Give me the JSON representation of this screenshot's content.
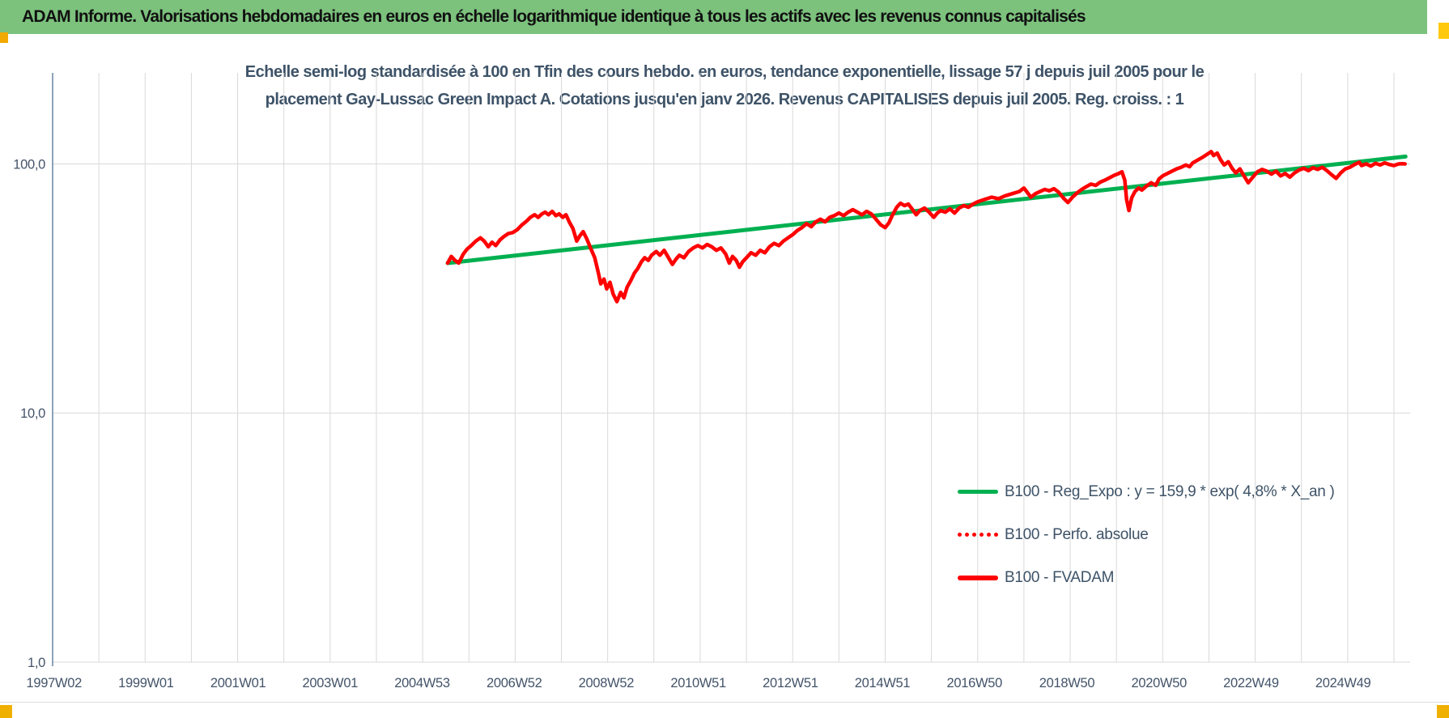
{
  "header": {
    "title": "ADAM Informe. Valorisations hebdomadaires en euros en échelle logarithmique identique à tous les actifs avec les revenus connus capitalisés"
  },
  "colors": {
    "header_bg": "#7CC27D",
    "header_text": "#111111",
    "title_text": "#3E5368",
    "tick_text": "#44546A",
    "grid": "#D9D9D9",
    "axis_line": "#6E8CA8",
    "trend_green": "#00B050",
    "series_red": "#FF0000",
    "marker_orange": "#F2A900",
    "marker_yellow": "#FFC90E",
    "marker_amber": "#EFB000"
  },
  "chart_data": {
    "type": "line",
    "title_line1": "Echelle semi-log standardisée à 100 en Tfin des cours hebdo. en euros, tendance exponentielle, lissage 57 j depuis juil 2005 pour le",
    "title_line2": "placement Gay-Lussac Green Impact A. Cotations jusqu'en janv 2026. Revenus CAPITALISES depuis juil 2005. Reg. croiss. : 1",
    "y_scale": "log10",
    "x_domain": [
      1997.0,
      2026.35
    ],
    "y_domain": [
      1.0,
      232.0
    ],
    "grid_x_step_years": 1,
    "legend_position": "inside-right",
    "y_ticks": [
      {
        "label": "100,0",
        "v": 100
      },
      {
        "label": "10,0",
        "v": 10
      },
      {
        "label": "1,0",
        "v": 1
      }
    ],
    "x_ticks": [
      {
        "label": "1997W02",
        "t": 1997.03
      },
      {
        "label": "1999W01",
        "t": 1999.02
      },
      {
        "label": "2001W01",
        "t": 2001.01
      },
      {
        "label": "2003W01",
        "t": 2003.0
      },
      {
        "label": "2004W53",
        "t": 2004.99
      },
      {
        "label": "2006W52",
        "t": 2006.98
      },
      {
        "label": "2008W52",
        "t": 2008.97
      },
      {
        "label": "2010W51",
        "t": 2010.96
      },
      {
        "label": "2012W51",
        "t": 2012.95
      },
      {
        "label": "2014W51",
        "t": 2014.94
      },
      {
        "label": "2016W50",
        "t": 2016.93
      },
      {
        "label": "2018W50",
        "t": 2018.93
      },
      {
        "label": "2020W50",
        "t": 2020.92
      },
      {
        "label": "2022W49",
        "t": 2022.91
      },
      {
        "label": "2024W49",
        "t": 2024.9
      }
    ],
    "series": [
      {
        "name": "B100 - Reg_Expo : y = 159,9 * exp( 4,8% *  X_an )",
        "color": "#00B050",
        "style": "solid",
        "width": 5,
        "points": [
          [
            2005.54,
            40.0
          ],
          [
            2026.25,
            107.0
          ]
        ]
      },
      {
        "name": "B100 - Perfo. absolue",
        "color": "#FF0000",
        "style": "dotted",
        "width": 4,
        "coincident_with": "B100 - FVADAM",
        "points": []
      },
      {
        "name": "B100 - FVADAM",
        "color": "#FF0000",
        "style": "solid",
        "width": 4.5,
        "points": [
          [
            2005.54,
            40
          ],
          [
            2005.62,
            42.5
          ],
          [
            2005.7,
            41
          ],
          [
            2005.78,
            40
          ],
          [
            2005.88,
            43.5
          ],
          [
            2005.96,
            45.5
          ],
          [
            2006.05,
            47
          ],
          [
            2006.15,
            49
          ],
          [
            2006.25,
            50.5
          ],
          [
            2006.33,
            49
          ],
          [
            2006.42,
            46.5
          ],
          [
            2006.5,
            48.5
          ],
          [
            2006.58,
            47
          ],
          [
            2006.67,
            49.5
          ],
          [
            2006.75,
            51
          ],
          [
            2006.85,
            52.5
          ],
          [
            2006.95,
            53
          ],
          [
            2007.05,
            54.5
          ],
          [
            2007.15,
            57
          ],
          [
            2007.25,
            59
          ],
          [
            2007.33,
            61
          ],
          [
            2007.42,
            62.5
          ],
          [
            2007.5,
            61
          ],
          [
            2007.58,
            63
          ],
          [
            2007.65,
            64
          ],
          [
            2007.72,
            62.5
          ],
          [
            2007.8,
            64.5
          ],
          [
            2007.88,
            62
          ],
          [
            2007.95,
            63
          ],
          [
            2008.03,
            61
          ],
          [
            2008.1,
            62.5
          ],
          [
            2008.17,
            58.5
          ],
          [
            2008.25,
            55
          ],
          [
            2008.33,
            49
          ],
          [
            2008.4,
            51.5
          ],
          [
            2008.47,
            53.5
          ],
          [
            2008.55,
            50
          ],
          [
            2008.63,
            46
          ],
          [
            2008.72,
            42
          ],
          [
            2008.8,
            36.5
          ],
          [
            2008.85,
            33
          ],
          [
            2008.92,
            34.5
          ],
          [
            2008.98,
            31.5
          ],
          [
            2009.05,
            33.5
          ],
          [
            2009.12,
            30
          ],
          [
            2009.2,
            28
          ],
          [
            2009.28,
            30.5
          ],
          [
            2009.35,
            29
          ],
          [
            2009.42,
            32
          ],
          [
            2009.5,
            34
          ],
          [
            2009.58,
            36.5
          ],
          [
            2009.65,
            38
          ],
          [
            2009.73,
            40.5
          ],
          [
            2009.8,
            42
          ],
          [
            2009.88,
            41
          ],
          [
            2009.95,
            43
          ],
          [
            2010.05,
            44.5
          ],
          [
            2010.13,
            43
          ],
          [
            2010.22,
            45
          ],
          [
            2010.3,
            42.5
          ],
          [
            2010.4,
            39.5
          ],
          [
            2010.48,
            41.5
          ],
          [
            2010.55,
            43
          ],
          [
            2010.65,
            42
          ],
          [
            2010.75,
            44.5
          ],
          [
            2010.85,
            46
          ],
          [
            2010.95,
            47
          ],
          [
            2011.05,
            46
          ],
          [
            2011.15,
            47.5
          ],
          [
            2011.25,
            46.5
          ],
          [
            2011.35,
            45
          ],
          [
            2011.45,
            46
          ],
          [
            2011.55,
            43.5
          ],
          [
            2011.63,
            40
          ],
          [
            2011.7,
            42.5
          ],
          [
            2011.78,
            41
          ],
          [
            2011.85,
            38.5
          ],
          [
            2011.92,
            40.5
          ],
          [
            2012,
            42
          ],
          [
            2012.1,
            44
          ],
          [
            2012.2,
            43
          ],
          [
            2012.3,
            45
          ],
          [
            2012.4,
            44
          ],
          [
            2012.5,
            46.5
          ],
          [
            2012.6,
            48
          ],
          [
            2012.7,
            47
          ],
          [
            2012.8,
            49
          ],
          [
            2012.9,
            50.5
          ],
          [
            2013,
            52
          ],
          [
            2013.1,
            54
          ],
          [
            2013.2,
            55.5
          ],
          [
            2013.3,
            57.5
          ],
          [
            2013.4,
            56
          ],
          [
            2013.5,
            58.5
          ],
          [
            2013.6,
            60
          ],
          [
            2013.7,
            58.5
          ],
          [
            2013.8,
            61
          ],
          [
            2013.9,
            62
          ],
          [
            2014,
            63.5
          ],
          [
            2014.1,
            62
          ],
          [
            2014.2,
            64
          ],
          [
            2014.3,
            65.5
          ],
          [
            2014.4,
            64
          ],
          [
            2014.5,
            62.5
          ],
          [
            2014.6,
            64.5
          ],
          [
            2014.7,
            63
          ],
          [
            2014.8,
            60
          ],
          [
            2014.9,
            57
          ],
          [
            2015,
            55.5
          ],
          [
            2015.08,
            58
          ],
          [
            2015.15,
            62
          ],
          [
            2015.25,
            67
          ],
          [
            2015.33,
            69.5
          ],
          [
            2015.42,
            68
          ],
          [
            2015.5,
            69
          ],
          [
            2015.58,
            66
          ],
          [
            2015.67,
            62.5
          ],
          [
            2015.75,
            65
          ],
          [
            2015.85,
            66.5
          ],
          [
            2015.95,
            64
          ],
          [
            2016.05,
            61
          ],
          [
            2016.13,
            63.5
          ],
          [
            2016.2,
            65
          ],
          [
            2016.3,
            64
          ],
          [
            2016.4,
            66
          ],
          [
            2016.5,
            63.5
          ],
          [
            2016.6,
            66.5
          ],
          [
            2016.7,
            68
          ],
          [
            2016.8,
            67
          ],
          [
            2016.9,
            69
          ],
          [
            2017,
            70.5
          ],
          [
            2017.15,
            72
          ],
          [
            2017.3,
            73.5
          ],
          [
            2017.45,
            72.5
          ],
          [
            2017.6,
            74.5
          ],
          [
            2017.75,
            76
          ],
          [
            2017.9,
            77.5
          ],
          [
            2018,
            80
          ],
          [
            2018.08,
            76.5
          ],
          [
            2018.15,
            73.5
          ],
          [
            2018.25,
            76
          ],
          [
            2018.35,
            77.5
          ],
          [
            2018.45,
            79
          ],
          [
            2018.55,
            78
          ],
          [
            2018.65,
            79.5
          ],
          [
            2018.75,
            77
          ],
          [
            2018.85,
            73
          ],
          [
            2018.95,
            70
          ],
          [
            2019.05,
            73.5
          ],
          [
            2019.15,
            76.5
          ],
          [
            2019.25,
            79
          ],
          [
            2019.35,
            81
          ],
          [
            2019.45,
            83
          ],
          [
            2019.55,
            82
          ],
          [
            2019.65,
            84.5
          ],
          [
            2019.75,
            86
          ],
          [
            2019.85,
            88
          ],
          [
            2019.95,
            90
          ],
          [
            2020.05,
            91.5
          ],
          [
            2020.12,
            93
          ],
          [
            2020.18,
            86
          ],
          [
            2020.22,
            72
          ],
          [
            2020.27,
            65
          ],
          [
            2020.33,
            73
          ],
          [
            2020.4,
            77.5
          ],
          [
            2020.48,
            80
          ],
          [
            2020.55,
            78.5
          ],
          [
            2020.65,
            81.5
          ],
          [
            2020.75,
            84
          ],
          [
            2020.85,
            82
          ],
          [
            2020.92,
            87
          ],
          [
            2021,
            89.5
          ],
          [
            2021.1,
            91.5
          ],
          [
            2021.2,
            93.5
          ],
          [
            2021.3,
            95.5
          ],
          [
            2021.4,
            97
          ],
          [
            2021.5,
            99
          ],
          [
            2021.58,
            97.5
          ],
          [
            2021.65,
            101
          ],
          [
            2021.75,
            103.5
          ],
          [
            2021.85,
            106
          ],
          [
            2021.95,
            109
          ],
          [
            2022.05,
            112
          ],
          [
            2022.1,
            108
          ],
          [
            2022.18,
            110.5
          ],
          [
            2022.25,
            104
          ],
          [
            2022.33,
            99
          ],
          [
            2022.42,
            102
          ],
          [
            2022.5,
            96
          ],
          [
            2022.58,
            92
          ],
          [
            2022.67,
            95.5
          ],
          [
            2022.75,
            90
          ],
          [
            2022.85,
            84
          ],
          [
            2022.95,
            88.5
          ],
          [
            2023.05,
            93
          ],
          [
            2023.15,
            95
          ],
          [
            2023.25,
            93.5
          ],
          [
            2023.35,
            91
          ],
          [
            2023.45,
            93.5
          ],
          [
            2023.55,
            89.5
          ],
          [
            2023.65,
            91.5
          ],
          [
            2023.75,
            88.5
          ],
          [
            2023.85,
            92
          ],
          [
            2023.95,
            94.5
          ],
          [
            2024.05,
            96
          ],
          [
            2024.15,
            94
          ],
          [
            2024.25,
            96.5
          ],
          [
            2024.35,
            95
          ],
          [
            2024.45,
            97
          ],
          [
            2024.55,
            94
          ],
          [
            2024.65,
            90.5
          ],
          [
            2024.75,
            87.5
          ],
          [
            2024.85,
            92
          ],
          [
            2024.95,
            95.5
          ],
          [
            2025.05,
            97
          ],
          [
            2025.15,
            99.5
          ],
          [
            2025.25,
            101.5
          ],
          [
            2025.3,
            98.5
          ],
          [
            2025.4,
            100
          ],
          [
            2025.5,
            98
          ],
          [
            2025.6,
            100.5
          ],
          [
            2025.7,
            99
          ],
          [
            2025.8,
            101
          ],
          [
            2025.9,
            99.5
          ],
          [
            2026,
            98.5
          ],
          [
            2026.1,
            100
          ],
          [
            2026.18,
            100.2
          ],
          [
            2026.24,
            100
          ]
        ]
      }
    ]
  }
}
